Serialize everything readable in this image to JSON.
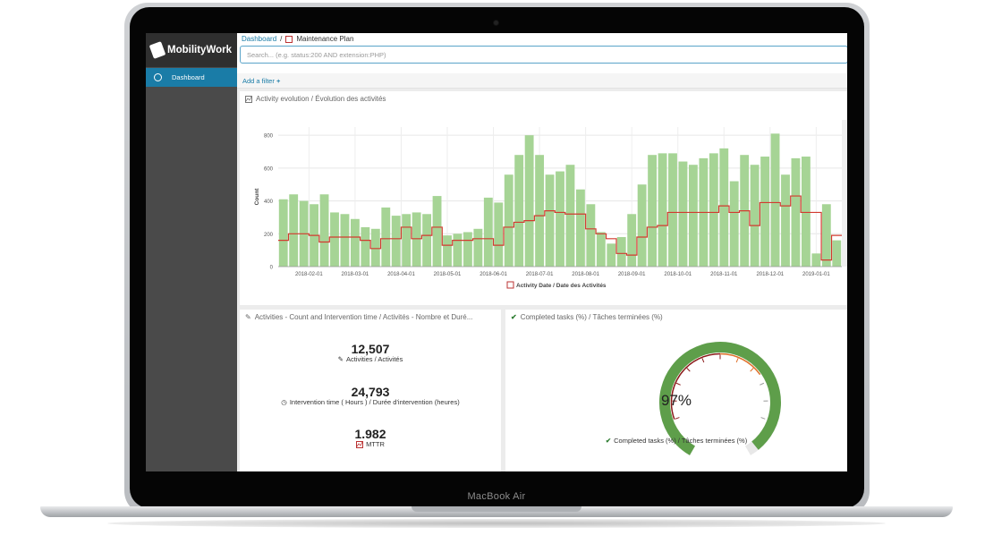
{
  "laptop": {
    "brand": "MacBook Air"
  },
  "app": {
    "logo_text": "MobilityWork"
  },
  "sidebar": {
    "items": [
      {
        "label": "Dashboard"
      }
    ]
  },
  "breadcrumb": {
    "parent": "Dashboard",
    "separator": "/",
    "current": "Maintenance Plan"
  },
  "search": {
    "placeholder": "Search... (e.g. status:200 AND extension:PHP)"
  },
  "filter": {
    "add_label": "Add a filter"
  },
  "activity_panel": {
    "title": "Activity evolution / Évolution des activités"
  },
  "chart_data": {
    "type": "bar",
    "ylabel": "Count",
    "xlabel": "Activity Date / Date des Activités",
    "ylim": [
      0,
      850
    ],
    "yticks": [
      0,
      200,
      400,
      600,
      800
    ],
    "xticks": [
      "2018-02-01",
      "2018-03-01",
      "2018-04-01",
      "2018-05-01",
      "2018-06-01",
      "2018-07-01",
      "2018-08-01",
      "2018-09-01",
      "2018-10-01",
      "2018-11-01",
      "2018-12-01",
      "2019-01-01"
    ],
    "bar_color": "#a6d495",
    "line_color": "#d23a2f",
    "series": [
      {
        "name": "Count",
        "values": [
          410,
          440,
          400,
          380,
          440,
          330,
          320,
          290,
          240,
          230,
          360,
          310,
          320,
          330,
          320,
          430,
          190,
          200,
          210,
          230,
          420,
          390,
          560,
          680,
          800,
          680,
          560,
          580,
          620,
          470,
          380,
          210,
          140,
          180,
          320,
          500,
          680,
          690,
          690,
          640,
          620,
          660,
          690,
          720,
          520,
          680,
          620,
          670,
          810,
          560,
          660,
          670,
          80,
          380,
          160
        ]
      },
      {
        "name": "Line",
        "values": [
          160,
          200,
          200,
          190,
          150,
          180,
          180,
          180,
          160,
          110,
          170,
          170,
          240,
          170,
          190,
          240,
          130,
          160,
          160,
          170,
          170,
          130,
          240,
          270,
          280,
          310,
          340,
          330,
          320,
          320,
          230,
          200,
          170,
          80,
          70,
          180,
          240,
          250,
          330,
          330,
          330,
          330,
          330,
          370,
          330,
          340,
          250,
          390,
          390,
          370,
          430,
          330,
          330,
          40,
          190
        ]
      }
    ]
  },
  "metrics_panel": {
    "title": "Activities - Count and Intervention time / Activités - Nombre et Duré...",
    "items": [
      {
        "value": "12,507",
        "label": "Activities / Activités",
        "icon": "pencil-icon"
      },
      {
        "value": "24,793",
        "label": "Intervention time ( Hours ) / Durée d'intervention (heures)",
        "icon": "clock-icon"
      },
      {
        "value": "1.982",
        "label": "MTTR",
        "icon": "chart-icon"
      }
    ]
  },
  "gauge_panel": {
    "title": "Completed tasks (%) / Tâches terminées (%)",
    "value_text": "97%",
    "value": 97,
    "label": "Completed tasks (%) / Tâches terminées (%)",
    "fill_color": "#5e9e4a",
    "track_colors": [
      "#8b1a1a",
      "#e0702a",
      "#5e9e4a"
    ]
  }
}
